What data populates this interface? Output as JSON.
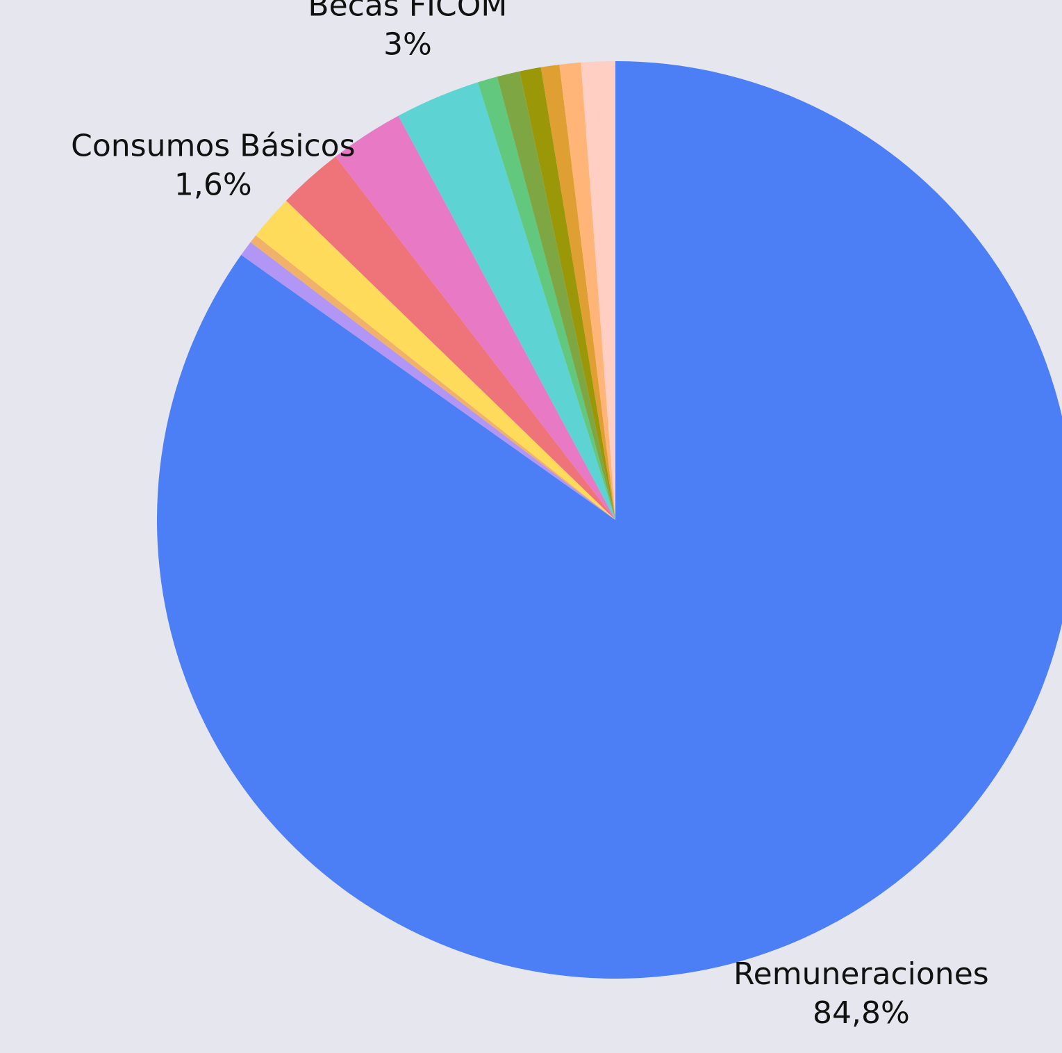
{
  "chart_data": {
    "type": "pie",
    "categories": [
      "Remuneraciones",
      null,
      null,
      "Consumos Básicos",
      null,
      null,
      "Becas FICOM",
      null,
      null,
      null,
      null,
      null,
      null
    ],
    "values": [
      84.8,
      0.55,
      0.3,
      1.6,
      2.3,
      2.6,
      3,
      0.7,
      0.8,
      0.75,
      0.65,
      0.75,
      1.2
    ],
    "value_labels": [
      "84,8%",
      null,
      null,
      "1,6%",
      null,
      null,
      "3%",
      null,
      null,
      null,
      null,
      null,
      null
    ],
    "colors": [
      "#4c7ff5",
      "#b196f5",
      "#f0b26a",
      "#ffdb5c",
      "#ee747a",
      "#e779c5",
      "#5ed3d3",
      "#62c87e",
      "#7ea744",
      "#9a9808",
      "#e09f32",
      "#ffb577",
      "#ffcfc4"
    ]
  }
}
